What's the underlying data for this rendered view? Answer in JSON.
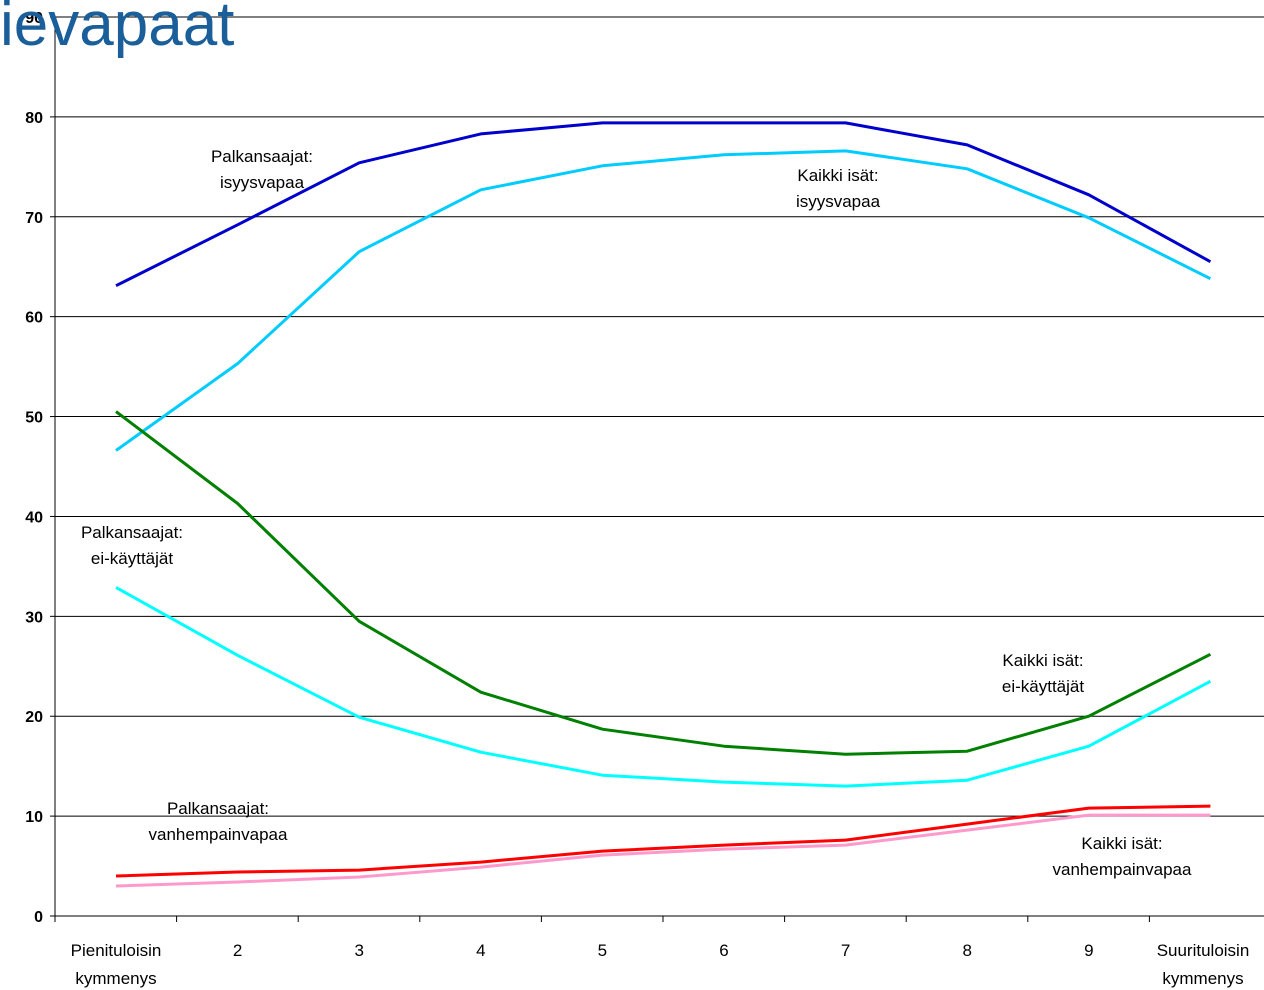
{
  "title": "ievapaat",
  "chart_data": {
    "type": "line",
    "title": "ievapaat",
    "categories": [
      "Pienituloisin\nkymmenys",
      "2",
      "3",
      "4",
      "5",
      "6",
      "7",
      "8",
      "9",
      "Suurituloisin\nkymmenys"
    ],
    "ylim": [
      0,
      90
    ],
    "yticks": [
      0,
      10,
      20,
      30,
      40,
      50,
      60,
      70,
      80,
      90
    ],
    "grid": true,
    "series": [
      {
        "color": "#0000cc",
        "values": [
          63.1,
          69.2,
          75.4,
          78.3,
          79.4,
          79.4,
          79.4,
          77.2,
          72.2,
          65.5
        ]
      },
      {
        "color": "#00ccff",
        "values": [
          46.6,
          55.3,
          66.5,
          72.7,
          75.1,
          76.2,
          76.6,
          74.8,
          69.9,
          63.8
        ]
      },
      {
        "color": "#008000",
        "values": [
          50.5,
          41.3,
          29.5,
          22.4,
          18.7,
          17.0,
          16.2,
          16.5,
          20.0,
          26.2
        ]
      },
      {
        "color": "#00ffff",
        "values": [
          32.9,
          26.1,
          19.9,
          16.4,
          14.1,
          13.4,
          13.0,
          13.6,
          17.0,
          23.5
        ]
      },
      {
        "color": "#ff0000",
        "values": [
          4.0,
          4.4,
          4.6,
          5.4,
          6.5,
          7.1,
          7.6,
          9.2,
          10.8,
          11.0
        ]
      },
      {
        "color": "#ff99cc",
        "values": [
          3.0,
          3.4,
          3.9,
          4.9,
          6.1,
          6.7,
          7.1,
          8.6,
          10.1,
          10.1
        ]
      }
    ],
    "annotations": [
      {
        "lines": [
          "Palkansaajat:",
          "isyysvapaa"
        ]
      },
      {
        "lines": [
          "Kaikki isät:",
          "isyysvapaa"
        ]
      },
      {
        "lines": [
          "Palkansaajat:",
          "ei-käyttäjät"
        ]
      },
      {
        "lines": [
          "Kaikki isät:",
          "ei-käyttäjät"
        ]
      },
      {
        "lines": [
          "Palkansaajat:",
          "vanhempainvapaa"
        ]
      },
      {
        "lines": [
          "Kaikki isät:",
          "vanhempainvapaa"
        ]
      }
    ]
  }
}
